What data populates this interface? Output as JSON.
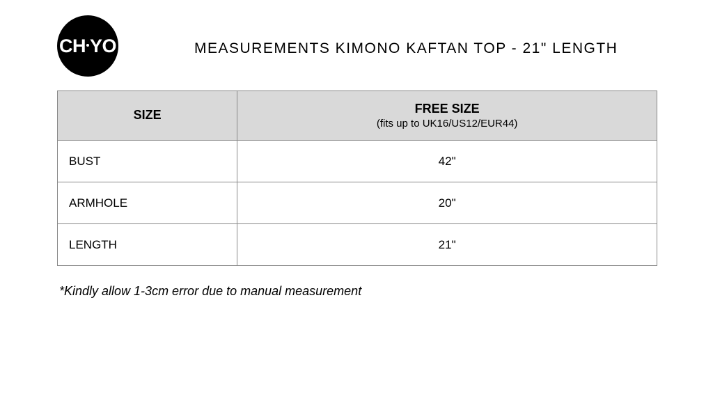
{
  "logo": {
    "text_left": "CH",
    "text_right": "YO",
    "circle_color": "#000000",
    "text_color": "#ffffff",
    "dot_color": "#ffffff"
  },
  "title": "MEASUREMENTS KIMONO KAFTAN TOP - 21\" LENGTH",
  "table": {
    "header": {
      "col1": "SIZE",
      "col2_main": "FREE SIZE",
      "col2_sub": "(fits up to UK16/US12/EUR44)"
    },
    "rows": [
      {
        "label": "BUST",
        "value": "42\""
      },
      {
        "label": "ARMHOLE",
        "value": "20\""
      },
      {
        "label": "LENGTH",
        "value": "21\""
      }
    ],
    "header_bg": "#d9d9d9",
    "border_color": "#888888"
  },
  "footnote": "*Kindly allow 1-3cm error due to manual measurement"
}
